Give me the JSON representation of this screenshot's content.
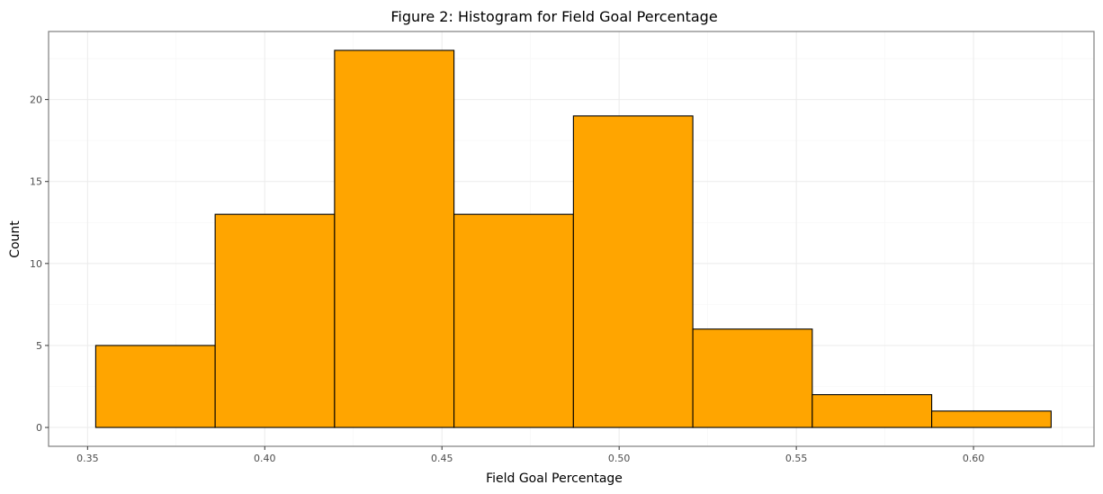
{
  "chart_data": {
    "type": "bar",
    "histogram": true,
    "title": "Figure 2: Histogram for Field Goal Percentage",
    "xlabel": "Field Goal Percentage",
    "ylabel": "Count",
    "xlim": [
      0.339,
      0.634
    ],
    "ylim": [
      -1.15,
      24.15
    ],
    "xticks": [
      0.35,
      0.4,
      0.45,
      0.5,
      0.55,
      0.6
    ],
    "xtick_labels": [
      "0.35",
      "0.40",
      "0.45",
      "0.50",
      "0.55",
      "0.60"
    ],
    "yticks": [
      0,
      5,
      10,
      15,
      20
    ],
    "ytick_labels": [
      "0",
      "5",
      "10",
      "15",
      "20"
    ],
    "bins": [
      {
        "start": 0.3523,
        "end": 0.386,
        "count": 5
      },
      {
        "start": 0.386,
        "end": 0.4197,
        "count": 13
      },
      {
        "start": 0.4197,
        "end": 0.4534,
        "count": 23
      },
      {
        "start": 0.4534,
        "end": 0.4871,
        "count": 13
      },
      {
        "start": 0.4871,
        "end": 0.5208,
        "count": 19
      },
      {
        "start": 0.5208,
        "end": 0.5545,
        "count": 6
      },
      {
        "start": 0.5545,
        "end": 0.5882,
        "count": 2
      },
      {
        "start": 0.5882,
        "end": 0.6219,
        "count": 1
      }
    ],
    "bar_fill": "#FFA500",
    "bar_outline": "#000000",
    "grid": true,
    "legend": "none"
  }
}
